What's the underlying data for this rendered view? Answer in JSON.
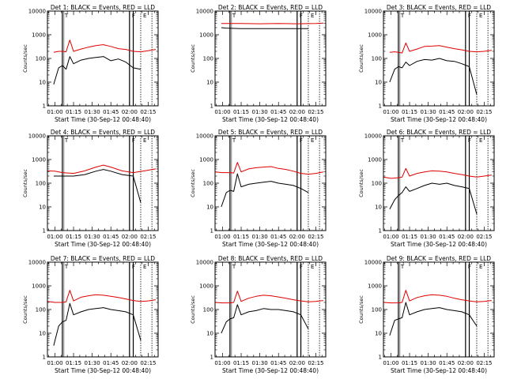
{
  "chart_data": [
    {
      "type": "line",
      "title": "Det 1: BLACK = Events, RED = LLD",
      "ylabel": "Counts/sec",
      "xlabel": "Start Time (30-Sep-12 00:48:40)",
      "yscale": "log",
      "ylim": [
        1,
        10000
      ],
      "xlim": [
        "00:54",
        "02:23"
      ],
      "x_ticks": [
        "01:00",
        "01:15",
        "01:30",
        "01:45",
        "02:00",
        "02:15"
      ],
      "y_ticks": [
        "1",
        "10",
        "100",
        "1000",
        "10000"
      ],
      "flags": [
        "T",
        "F",
        "E"
      ],
      "series": [
        {
          "name": "Events",
          "color": "#000000",
          "x": [
            "00:59",
            "01:03",
            "01:06",
            "01:09",
            "01:12",
            "01:15",
            "01:21",
            "01:27",
            "01:33",
            "01:39",
            "01:45",
            "01:51",
            "01:57",
            "02:03",
            "02:09"
          ],
          "y": [
            8,
            40,
            50,
            35,
            120,
            60,
            85,
            100,
            110,
            120,
            80,
            95,
            70,
            40,
            35
          ]
        },
        {
          "name": "LLD",
          "color": "#e00000",
          "x": [
            "00:59",
            "01:03",
            "01:06",
            "01:09",
            "01:12",
            "01:15",
            "01:21",
            "01:27",
            "01:33",
            "01:39",
            "01:45",
            "01:51",
            "01:57",
            "02:03",
            "02:09",
            "02:15",
            "02:21"
          ],
          "y": [
            180,
            200,
            200,
            190,
            600,
            200,
            250,
            300,
            350,
            380,
            320,
            260,
            240,
            200,
            190,
            210,
            240
          ]
        }
      ]
    },
    {
      "type": "line",
      "title": "Det 2: BLACK = Events, RED = LLD",
      "ylabel": "Counts/sec",
      "xlabel": "Start Time (30-Sep-12 00:48:40)",
      "yscale": "log",
      "ylim": [
        1,
        10000
      ],
      "xlim": [
        "00:54",
        "02:23"
      ],
      "x_ticks": [
        "01:00",
        "01:15",
        "01:30",
        "01:45",
        "02:00",
        "02:15"
      ],
      "y_ticks": [
        "1",
        "10",
        "100",
        "1000",
        "10000"
      ],
      "flags": [
        "T",
        "F",
        "E"
      ],
      "series": [
        {
          "name": "Events",
          "color": "#000000",
          "x": [
            "00:59",
            "01:03",
            "01:15",
            "01:30",
            "01:45",
            "02:00",
            "02:09"
          ],
          "y": [
            2000,
            1900,
            1800,
            1800,
            1800,
            1800,
            1800
          ]
        },
        {
          "name": "LLD",
          "color": "#e00000",
          "x": [
            "00:59",
            "01:15",
            "01:30",
            "01:45",
            "02:00",
            "02:15",
            "02:21"
          ],
          "y": [
            3000,
            3000,
            2900,
            3000,
            2900,
            3000,
            3100
          ]
        }
      ]
    },
    {
      "type": "line",
      "title": "Det 3: BLACK = Events, RED = LLD",
      "ylabel": "Counts/sec",
      "xlabel": "Start Time (30-Sep-12 00:48:40)",
      "yscale": "log",
      "ylim": [
        1,
        10000
      ],
      "xlim": [
        "00:54",
        "02:23"
      ],
      "x_ticks": [
        "01:00",
        "01:15",
        "01:30",
        "01:45",
        "02:00",
        "02:15"
      ],
      "y_ticks": [
        "1",
        "10",
        "100",
        "1000",
        "10000"
      ],
      "flags": [
        "T",
        "F",
        "E"
      ],
      "series": [
        {
          "name": "Events",
          "color": "#000000",
          "x": [
            "00:59",
            "01:03",
            "01:06",
            "01:09",
            "01:12",
            "01:15",
            "01:21",
            "01:27",
            "01:33",
            "01:39",
            "01:45",
            "01:51",
            "01:57",
            "02:03",
            "02:09"
          ],
          "y": [
            10,
            35,
            45,
            40,
            70,
            50,
            75,
            90,
            85,
            100,
            80,
            75,
            60,
            45,
            3
          ]
        },
        {
          "name": "LLD",
          "color": "#e00000",
          "x": [
            "00:59",
            "01:03",
            "01:06",
            "01:09",
            "01:12",
            "01:15",
            "01:21",
            "01:27",
            "01:33",
            "01:39",
            "01:45",
            "01:51",
            "01:57",
            "02:03",
            "02:09",
            "02:15",
            "02:21"
          ],
          "y": [
            180,
            190,
            180,
            170,
            450,
            200,
            250,
            320,
            330,
            350,
            300,
            260,
            230,
            200,
            190,
            200,
            220
          ]
        }
      ]
    },
    {
      "type": "line",
      "title": "Det 4: BLACK = Events, RED = LLD",
      "ylabel": "Counts/sec",
      "xlabel": "Start Time (30-Sep-12 00:48:40)",
      "yscale": "log",
      "ylim": [
        1,
        10000
      ],
      "xlim": [
        "00:54",
        "02:23"
      ],
      "x_ticks": [
        "01:00",
        "01:15",
        "01:30",
        "01:45",
        "02:00",
        "02:15"
      ],
      "y_ticks": [
        "1",
        "10",
        "100",
        "1000",
        "10000"
      ],
      "flags": [
        "T",
        "F",
        "E"
      ],
      "series": [
        {
          "name": "Events",
          "color": "#000000",
          "x": [
            "00:59",
            "01:06",
            "01:15",
            "01:24",
            "01:33",
            "01:39",
            "01:45",
            "01:54",
            "02:03",
            "02:09"
          ],
          "y": [
            200,
            200,
            200,
            230,
            320,
            380,
            320,
            230,
            200,
            15
          ]
        },
        {
          "name": "LLD",
          "color": "#e00000",
          "x": [
            "00:54",
            "01:00",
            "01:06",
            "01:15",
            "01:24",
            "01:33",
            "01:39",
            "01:45",
            "01:54",
            "02:03",
            "02:12",
            "02:21"
          ],
          "y": [
            330,
            320,
            280,
            260,
            330,
            480,
            580,
            480,
            330,
            280,
            330,
            400
          ]
        }
      ]
    },
    {
      "type": "line",
      "title": "Det 5: BLACK = Events, RED = LLD",
      "ylabel": "Counts/sec",
      "xlabel": "Start Time (30-Sep-12 00:48:40)",
      "yscale": "log",
      "ylim": [
        1,
        10000
      ],
      "xlim": [
        "00:54",
        "02:23"
      ],
      "x_ticks": [
        "01:00",
        "01:15",
        "01:30",
        "01:45",
        "02:00",
        "02:15"
      ],
      "y_ticks": [
        "1",
        "10",
        "100",
        "1000",
        "10000"
      ],
      "flags": [
        "T",
        "F",
        "E"
      ],
      "series": [
        {
          "name": "Events",
          "color": "#000000",
          "x": [
            "00:59",
            "01:03",
            "01:06",
            "01:09",
            "01:12",
            "01:15",
            "01:21",
            "01:27",
            "01:33",
            "01:39",
            "01:45",
            "01:51",
            "01:57",
            "02:03",
            "02:09"
          ],
          "y": [
            10,
            40,
            50,
            45,
            250,
            70,
            90,
            100,
            110,
            120,
            100,
            90,
            80,
            60,
            40
          ]
        },
        {
          "name": "LLD",
          "color": "#e00000",
          "x": [
            "00:54",
            "01:00",
            "01:06",
            "01:09",
            "01:12",
            "01:15",
            "01:21",
            "01:27",
            "01:33",
            "01:39",
            "01:45",
            "01:51",
            "01:57",
            "02:03",
            "02:09",
            "02:15",
            "02:21"
          ],
          "y": [
            300,
            280,
            280,
            270,
            750,
            300,
            400,
            450,
            480,
            500,
            420,
            380,
            320,
            260,
            240,
            260,
            300
          ]
        }
      ]
    },
    {
      "type": "line",
      "title": "Det 6: BLACK = Events, RED = LLD",
      "ylabel": "Counts/sec",
      "xlabel": "Start Time (30-Sep-12 00:48:40)",
      "yscale": "log",
      "ylim": [
        1,
        10000
      ],
      "xlim": [
        "00:54",
        "02:23"
      ],
      "x_ticks": [
        "01:00",
        "01:15",
        "01:30",
        "01:45",
        "02:00",
        "02:15"
      ],
      "y_ticks": [
        "1",
        "10",
        "100",
        "1000",
        "10000"
      ],
      "flags": [
        "T",
        "F",
        "E"
      ],
      "series": [
        {
          "name": "Events",
          "color": "#000000",
          "x": [
            "00:59",
            "01:03",
            "01:06",
            "01:09",
            "01:12",
            "01:15",
            "01:21",
            "01:27",
            "01:33",
            "01:39",
            "01:45",
            "01:51",
            "01:57",
            "02:03",
            "02:09"
          ],
          "y": [
            8,
            20,
            30,
            40,
            70,
            45,
            60,
            80,
            100,
            90,
            100,
            80,
            70,
            60,
            5
          ]
        },
        {
          "name": "LLD",
          "color": "#e00000",
          "x": [
            "00:54",
            "01:00",
            "01:06",
            "01:09",
            "01:12",
            "01:15",
            "01:21",
            "01:27",
            "01:33",
            "01:39",
            "01:45",
            "01:51",
            "01:57",
            "02:03",
            "02:09",
            "02:15",
            "02:21"
          ],
          "y": [
            180,
            160,
            170,
            180,
            420,
            200,
            260,
            300,
            330,
            320,
            300,
            260,
            230,
            200,
            180,
            200,
            220
          ]
        }
      ]
    },
    {
      "type": "line",
      "title": "Det 7: BLACK = Events, RED = LLD",
      "ylabel": "Counts/sec",
      "xlabel": "Start Time (30-Sep-12 00:48:40)",
      "yscale": "log",
      "ylim": [
        1,
        10000
      ],
      "xlim": [
        "00:54",
        "02:23"
      ],
      "x_ticks": [
        "01:00",
        "01:15",
        "01:30",
        "01:45",
        "02:00",
        "02:15"
      ],
      "y_ticks": [
        "1",
        "10",
        "100",
        "1000",
        "10000"
      ],
      "flags": [
        "T",
        "F",
        "E"
      ],
      "series": [
        {
          "name": "Events",
          "color": "#000000",
          "x": [
            "00:59",
            "01:03",
            "01:06",
            "01:09",
            "01:12",
            "01:15",
            "01:21",
            "01:27",
            "01:33",
            "01:39",
            "01:45",
            "01:51",
            "01:57",
            "02:03",
            "02:09"
          ],
          "y": [
            3,
            20,
            30,
            35,
            180,
            60,
            80,
            100,
            110,
            120,
            100,
            90,
            80,
            60,
            5
          ]
        },
        {
          "name": "LLD",
          "color": "#e00000",
          "x": [
            "00:54",
            "01:00",
            "01:06",
            "01:09",
            "01:12",
            "01:15",
            "01:21",
            "01:27",
            "01:33",
            "01:39",
            "01:45",
            "01:51",
            "01:57",
            "02:03",
            "02:09",
            "02:15",
            "02:21"
          ],
          "y": [
            220,
            200,
            200,
            210,
            650,
            230,
            330,
            380,
            420,
            400,
            360,
            320,
            280,
            240,
            220,
            230,
            260
          ]
        }
      ]
    },
    {
      "type": "line",
      "title": "Det 8: BLACK = Events, RED = LLD",
      "ylabel": "Counts/sec",
      "xlabel": "Start Time (30-Sep-12 00:48:40)",
      "yscale": "log",
      "ylim": [
        1,
        10000
      ],
      "xlim": [
        "00:54",
        "02:23"
      ],
      "x_ticks": [
        "01:00",
        "01:15",
        "01:30",
        "01:45",
        "02:00",
        "02:15"
      ],
      "y_ticks": [
        "1",
        "10",
        "100",
        "1000",
        "10000"
      ],
      "flags": [
        "T",
        "F",
        "E"
      ],
      "series": [
        {
          "name": "Events",
          "color": "#000000",
          "x": [
            "00:59",
            "01:03",
            "01:06",
            "01:09",
            "01:12",
            "01:15",
            "01:21",
            "01:27",
            "01:33",
            "01:39",
            "01:45",
            "01:51",
            "01:57",
            "02:03",
            "02:09"
          ],
          "y": [
            10,
            30,
            40,
            45,
            160,
            60,
            80,
            90,
            110,
            100,
            100,
            90,
            80,
            60,
            15
          ]
        },
        {
          "name": "LLD",
          "color": "#e00000",
          "x": [
            "00:54",
            "01:00",
            "01:06",
            "01:09",
            "01:12",
            "01:15",
            "01:21",
            "01:27",
            "01:33",
            "01:39",
            "01:45",
            "01:51",
            "01:57",
            "02:03",
            "02:09",
            "02:15",
            "02:21"
          ],
          "y": [
            200,
            190,
            190,
            200,
            600,
            220,
            300,
            360,
            400,
            380,
            340,
            300,
            260,
            230,
            210,
            220,
            240
          ]
        }
      ]
    },
    {
      "type": "line",
      "title": "Det 9: BLACK = Events, RED = LLD",
      "ylabel": "Counts/sec",
      "xlabel": "Start Time (30-Sep-12 00:48:40)",
      "yscale": "log",
      "ylim": [
        1,
        10000
      ],
      "xlim": [
        "00:54",
        "02:23"
      ],
      "x_ticks": [
        "01:00",
        "01:15",
        "01:30",
        "01:45",
        "02:00",
        "02:15"
      ],
      "y_ticks": [
        "1",
        "10",
        "100",
        "1000",
        "10000"
      ],
      "flags": [
        "T",
        "F",
        "E"
      ],
      "series": [
        {
          "name": "Events",
          "color": "#000000",
          "x": [
            "00:59",
            "01:03",
            "01:06",
            "01:09",
            "01:12",
            "01:15",
            "01:21",
            "01:27",
            "01:33",
            "01:39",
            "01:45",
            "01:51",
            "01:57",
            "02:03",
            "02:09"
          ],
          "y": [
            8,
            35,
            40,
            45,
            200,
            60,
            80,
            100,
            110,
            120,
            100,
            90,
            80,
            60,
            20
          ]
        },
        {
          "name": "LLD",
          "color": "#e00000",
          "x": [
            "00:54",
            "01:00",
            "01:06",
            "01:09",
            "01:12",
            "01:15",
            "01:21",
            "01:27",
            "01:33",
            "01:39",
            "01:45",
            "01:51",
            "01:57",
            "02:03",
            "02:09",
            "02:15",
            "02:21"
          ],
          "y": [
            200,
            190,
            190,
            200,
            650,
            230,
            320,
            380,
            420,
            400,
            360,
            300,
            260,
            230,
            210,
            220,
            240
          ]
        }
      ]
    }
  ]
}
